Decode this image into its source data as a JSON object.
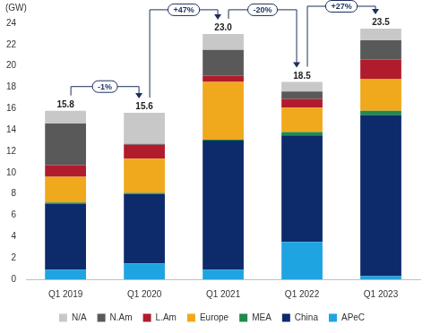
{
  "chart_data": {
    "type": "bar",
    "y_label": "(GW)",
    "categories": [
      "Q1 2019",
      "Q1 2020",
      "Q1 2021",
      "Q1 2022",
      "Q1 2023"
    ],
    "series": [
      {
        "name": "APeC",
        "color": "#1ea4e0",
        "values": [
          0.9,
          1.5,
          0.9,
          3.5,
          0.3
        ]
      },
      {
        "name": "China",
        "color": "#0d2a6b",
        "values": [
          6.2,
          6.5,
          12.1,
          10.0,
          15.1
        ]
      },
      {
        "name": "MEA",
        "color": "#1f8a4c",
        "values": [
          0.1,
          0.1,
          0.1,
          0.3,
          0.4
        ]
      },
      {
        "name": "Europe",
        "color": "#f0a81c",
        "values": [
          2.4,
          3.2,
          5.4,
          2.3,
          3.0
        ]
      },
      {
        "name": "L.Am",
        "color": "#b01c2e",
        "values": [
          1.1,
          1.3,
          0.6,
          0.8,
          1.8
        ]
      },
      {
        "name": "N.Am",
        "color": "#595959",
        "values": [
          3.9,
          0.1,
          2.4,
          0.7,
          1.8
        ]
      },
      {
        "name": "N/A",
        "color": "#c8c8c8",
        "values": [
          1.2,
          2.9,
          1.5,
          0.9,
          1.1
        ]
      }
    ],
    "totals": [
      15.8,
      15.6,
      23.0,
      18.5,
      23.5
    ],
    "total_labels": [
      "15.8",
      "15.6",
      "23.0",
      "18.5",
      "23.5"
    ],
    "changes": [
      {
        "from": "Q1 2019",
        "to": "Q1 2020",
        "label": "-1%"
      },
      {
        "from": "Q1 2020",
        "to": "Q1 2021",
        "label": "+47%"
      },
      {
        "from": "Q1 2021",
        "to": "Q1 2022",
        "label": "-20%"
      },
      {
        "from": "Q1 2022",
        "to": "Q1 2023",
        "label": "+27%"
      }
    ],
    "stacked": true,
    "grid": false,
    "legend": "bottom",
    "ylim": [
      0,
      24
    ],
    "yticks": [
      0,
      2,
      4,
      6,
      8,
      10,
      12,
      14,
      16,
      18,
      20,
      22,
      24
    ]
  }
}
